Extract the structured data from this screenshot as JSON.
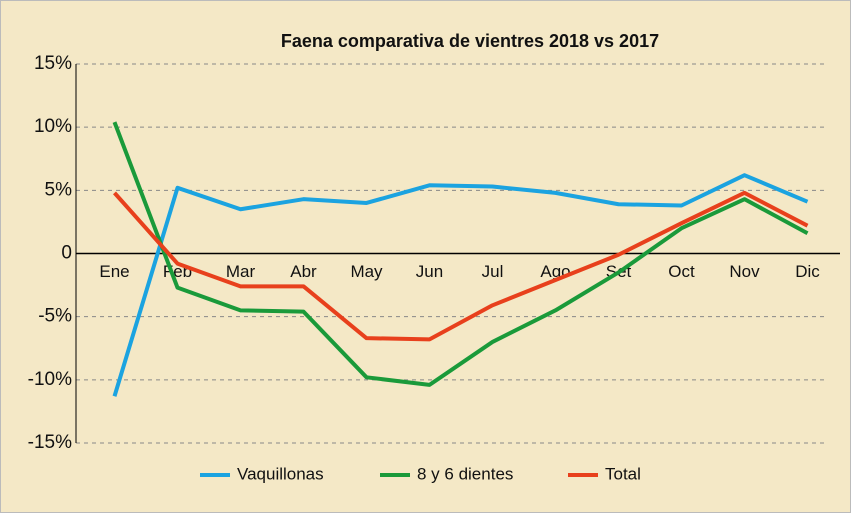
{
  "chart_data": {
    "type": "line",
    "title": "Faena comparativa de vientres 2018 vs 2017",
    "categories": [
      "Ene",
      "Feb",
      "Mar",
      "Abr",
      "May",
      "Jun",
      "Jul",
      "Ago",
      "Set",
      "Oct",
      "Nov",
      "Dic"
    ],
    "series": [
      {
        "name": "Vaquillonas",
        "color": "#1ba3e0",
        "values": [
          -11.3,
          5.2,
          3.5,
          4.3,
          4.0,
          5.4,
          5.3,
          4.8,
          3.9,
          3.8,
          6.2,
          4.1
        ]
      },
      {
        "name": "8 y 6 dientes",
        "color": "#1a9a3a",
        "values": [
          10.4,
          -2.7,
          -4.5,
          -4.6,
          -9.8,
          -10.4,
          -7.0,
          -4.5,
          -1.5,
          2.0,
          4.3,
          1.6
        ]
      },
      {
        "name": "Total",
        "color": "#e8401c",
        "values": [
          4.8,
          -0.8,
          -2.6,
          -2.6,
          -6.7,
          -6.8,
          -4.1,
          -2.1,
          -0.1,
          2.4,
          4.8,
          2.2
        ]
      }
    ],
    "ylim": [
      -15,
      15
    ],
    "yticks": [
      {
        "value": -15,
        "label": "-15%"
      },
      {
        "value": -10,
        "label": "-10%"
      },
      {
        "value": -5,
        "label": "-5%"
      },
      0,
      {
        "value": 5,
        "label": "5%"
      },
      {
        "value": 10,
        "label": "10%"
      },
      {
        "value": 15,
        "label": "15%"
      }
    ],
    "grid": true,
    "legend": "bottom"
  }
}
